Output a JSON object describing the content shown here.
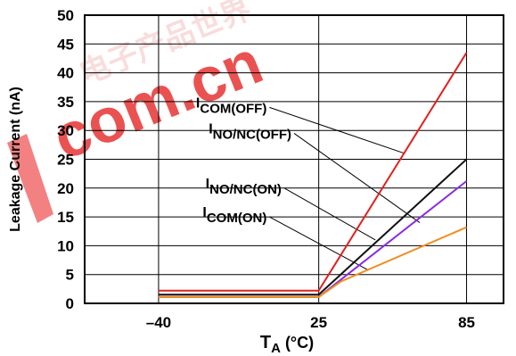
{
  "watermark": {
    "text_cn": "电子产品世界",
    "text_domain": "com.cn",
    "color_text": "#f2b8b8",
    "color_domain": "#e84040",
    "color_swoosh": "#f05a5a"
  },
  "chart_data": {
    "type": "line",
    "title": "",
    "xlabel": {
      "main": "T",
      "sub": "A",
      "unit": " (°C)"
    },
    "ylabel": "Leakage Current (nA)",
    "x_ticks": [
      -40,
      25,
      85
    ],
    "x_tick_labels": [
      "–40",
      "25",
      "85"
    ],
    "xlim": [
      -70,
      100
    ],
    "ylim": [
      0,
      50
    ],
    "y_ticks": [
      0,
      5,
      10,
      15,
      20,
      25,
      30,
      35,
      40,
      45,
      50
    ],
    "grid": true,
    "series": [
      {
        "name": {
          "main": "I",
          "sub": "COM(OFF)"
        },
        "color": "#e0201e",
        "x": [
          -40,
          25,
          85
        ],
        "y": [
          2.2,
          2.2,
          43.5
        ],
        "leader": {
          "from_label": [
            5,
            34
          ],
          "to_point": [
            60,
            26
          ]
        }
      },
      {
        "name": {
          "main": "I",
          "sub": "NO/NC(OFF)"
        },
        "color": "#111111",
        "x": [
          -40,
          25,
          85
        ],
        "y": [
          1.5,
          1.5,
          25
        ],
        "leader": {
          "from_label": [
            15,
            29.5
          ],
          "to_point": [
            66,
            14
          ]
        }
      },
      {
        "name": {
          "main": "I",
          "sub": "NO/NC(ON)"
        },
        "color": "#8a2be2",
        "x": [
          -40,
          25,
          85
        ],
        "y": [
          1.1,
          1.1,
          21.2
        ],
        "leader": {
          "from_label": [
            11,
            20
          ],
          "to_point": [
            48,
            11
          ]
        }
      },
      {
        "name": {
          "main": "I",
          "sub": "COM(ON)"
        },
        "color": "#f28c1e",
        "x": [
          -40,
          25,
          34,
          85
        ],
        "y": [
          1.1,
          1.1,
          3.8,
          13.2
        ],
        "leader": {
          "from_label": [
            5,
            15
          ],
          "to_point": [
            45,
            5.8
          ]
        }
      }
    ]
  }
}
